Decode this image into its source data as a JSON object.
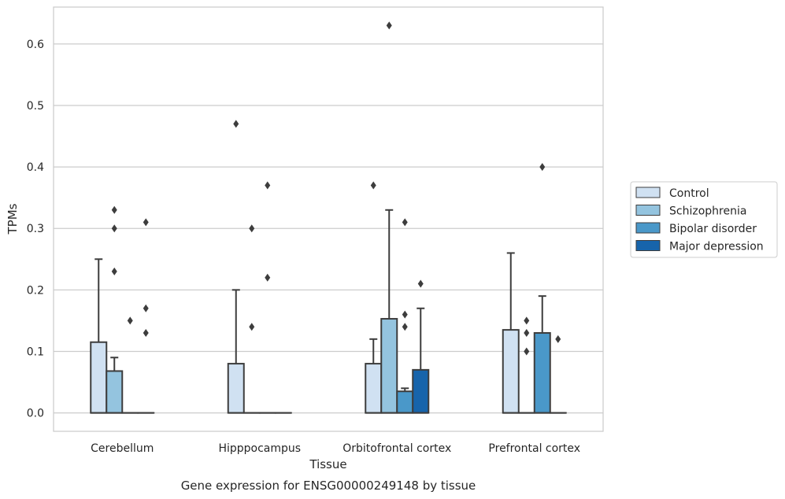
{
  "caption": "Gene expression for ENSG00000249148 by tissue",
  "chart_data": {
    "type": "boxplot",
    "title": "",
    "xlabel": "Tissue",
    "ylabel": "TPMs",
    "ylim": [
      -0.03,
      0.66
    ],
    "yticks": [
      0.0,
      0.1,
      0.2,
      0.3,
      0.4,
      0.5,
      0.6
    ],
    "ytick_labels": [
      "0.0",
      "0.1",
      "0.2",
      "0.3",
      "0.4",
      "0.5",
      "0.6"
    ],
    "grid": "horizontal",
    "legend_position": "right",
    "categories": [
      "Cerebellum",
      "Hipppocampus",
      "Orbitofrontal cortex",
      "Prefrontal cortex"
    ],
    "series": [
      {
        "name": "Control",
        "color": "#d0e1f2",
        "boxes": [
          {
            "q1": 0.0,
            "q3": 0.115,
            "whisker_low": 0.0,
            "whisker_high": 0.25,
            "outliers": []
          },
          {
            "q1": 0.0,
            "q3": 0.08,
            "whisker_low": 0.0,
            "whisker_high": 0.2,
            "outliers": [
              0.47
            ]
          },
          {
            "q1": 0.0,
            "q3": 0.08,
            "whisker_low": 0.0,
            "whisker_high": 0.12,
            "outliers": [
              0.37
            ]
          },
          {
            "q1": 0.0,
            "q3": 0.135,
            "whisker_low": 0.0,
            "whisker_high": 0.26,
            "outliers": []
          }
        ]
      },
      {
        "name": "Schizophrenia",
        "color": "#94c4df",
        "boxes": [
          {
            "q1": 0.0,
            "q3": 0.068,
            "whisker_low": 0.0,
            "whisker_high": 0.09,
            "outliers": [
              0.33,
              0.3,
              0.23
            ]
          },
          {
            "q1": 0.0,
            "q3": 0.0,
            "whisker_low": 0.0,
            "whisker_high": 0.0,
            "outliers": [
              0.3,
              0.14
            ]
          },
          {
            "q1": 0.0,
            "q3": 0.153,
            "whisker_low": 0.0,
            "whisker_high": 0.33,
            "outliers": [
              0.63
            ]
          },
          {
            "q1": 0.0,
            "q3": 0.0,
            "whisker_low": 0.0,
            "whisker_high": 0.0,
            "outliers": [
              0.15,
              0.13,
              0.1
            ]
          }
        ]
      },
      {
        "name": "Bipolar disorder",
        "color": "#4a98c9",
        "boxes": [
          {
            "q1": 0.0,
            "q3": 0.0,
            "whisker_low": 0.0,
            "whisker_high": 0.0,
            "outliers": [
              0.15
            ]
          },
          {
            "q1": 0.0,
            "q3": 0.0,
            "whisker_low": 0.0,
            "whisker_high": 0.0,
            "outliers": [
              0.37,
              0.22
            ]
          },
          {
            "q1": 0.0,
            "q3": 0.035,
            "whisker_low": 0.0,
            "whisker_high": 0.04,
            "outliers": [
              0.31,
              0.16,
              0.14
            ]
          },
          {
            "q1": 0.0,
            "q3": 0.13,
            "whisker_low": 0.0,
            "whisker_high": 0.19,
            "outliers": [
              0.4
            ]
          }
        ]
      },
      {
        "name": "Major depression",
        "color": "#1764ab",
        "boxes": [
          {
            "q1": 0.0,
            "q3": 0.0,
            "whisker_low": 0.0,
            "whisker_high": 0.0,
            "outliers": [
              0.31,
              0.17,
              0.13
            ]
          },
          {
            "q1": 0.0,
            "q3": 0.0,
            "whisker_low": 0.0,
            "whisker_high": 0.0,
            "outliers": []
          },
          {
            "q1": 0.0,
            "q3": 0.07,
            "whisker_low": 0.0,
            "whisker_high": 0.17,
            "outliers": [
              0.21
            ]
          },
          {
            "q1": 0.0,
            "q3": 0.0,
            "whisker_low": 0.0,
            "whisker_high": 0.0,
            "outliers": [
              0.12
            ]
          }
        ]
      }
    ]
  }
}
